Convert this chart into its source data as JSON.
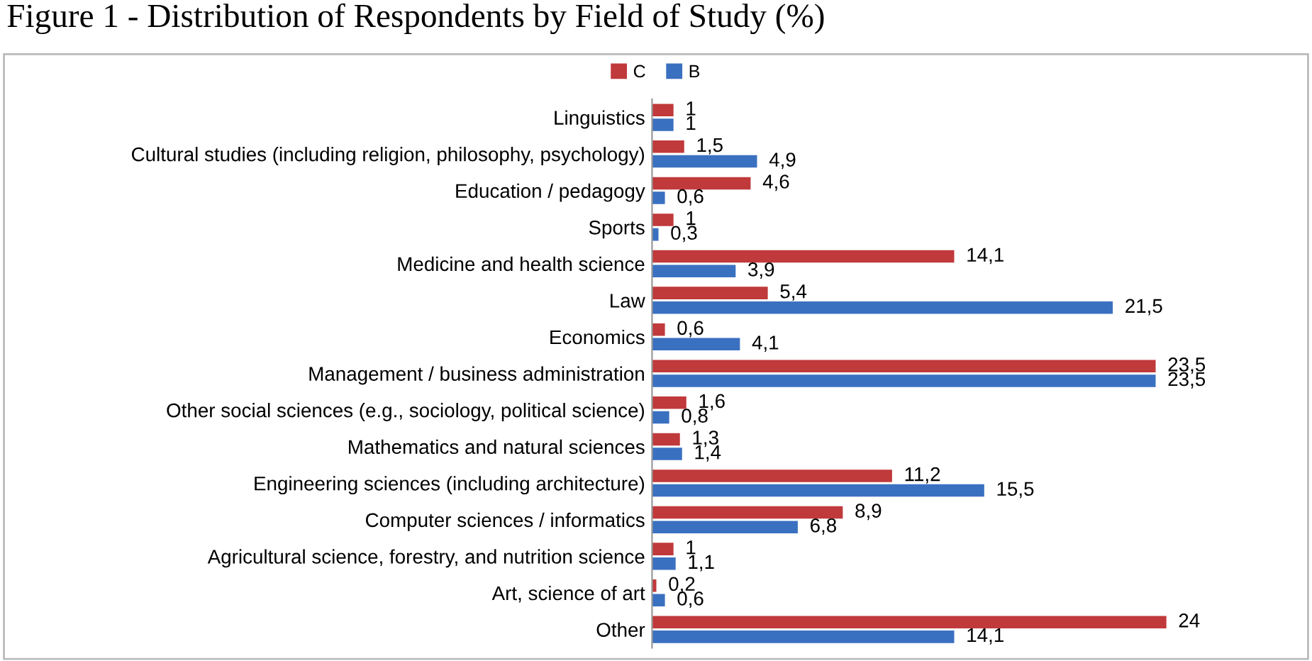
{
  "chart_data": {
    "type": "bar",
    "orientation": "horizontal",
    "title": "Figure 1 - Distribution of Respondents by Field of Study (%)",
    "categories": [
      "Linguistics",
      "Cultural studies (including religion, philosophy, psychology)",
      "Education / pedagogy",
      "Sports",
      "Medicine and health science",
      "Law",
      "Economics",
      "Management / business administration",
      "Other social sciences (e.g., sociology, political science)",
      "Mathematics and natural sciences",
      "Engineering sciences (including architecture)",
      "Computer sciences / informatics",
      "Agricultural science, forestry, and nutrition science",
      "Art, science of art",
      "Other"
    ],
    "series": [
      {
        "name": "C",
        "color": "#c0393b",
        "values": [
          1,
          1.5,
          4.6,
          1,
          14.1,
          5.4,
          0.6,
          23.5,
          1.6,
          1.3,
          11.2,
          8.9,
          1,
          0.2,
          24
        ],
        "value_labels": [
          "1",
          "1,5",
          "4,6",
          "1",
          "14,1",
          "5,4",
          "0,6",
          "23,5",
          "1,6",
          "1,3",
          "11,2",
          "8,9",
          "1",
          "0,2",
          "24"
        ]
      },
      {
        "name": "B",
        "color": "#3a70c0",
        "values": [
          1,
          4.9,
          0.6,
          0.3,
          3.9,
          21.5,
          4.1,
          23.5,
          0.8,
          1.4,
          15.5,
          6.8,
          1.1,
          0.6,
          14.1
        ],
        "value_labels": [
          "1",
          "4,9",
          "0,6",
          "0,3",
          "3,9",
          "21,5",
          "4,1",
          "23,5",
          "0,8",
          "1,4",
          "15,5",
          "6,8",
          "1,1",
          "0,6",
          "14,1"
        ]
      }
    ],
    "tick_labels": "y",
    "legend": "top",
    "grid": false
  }
}
